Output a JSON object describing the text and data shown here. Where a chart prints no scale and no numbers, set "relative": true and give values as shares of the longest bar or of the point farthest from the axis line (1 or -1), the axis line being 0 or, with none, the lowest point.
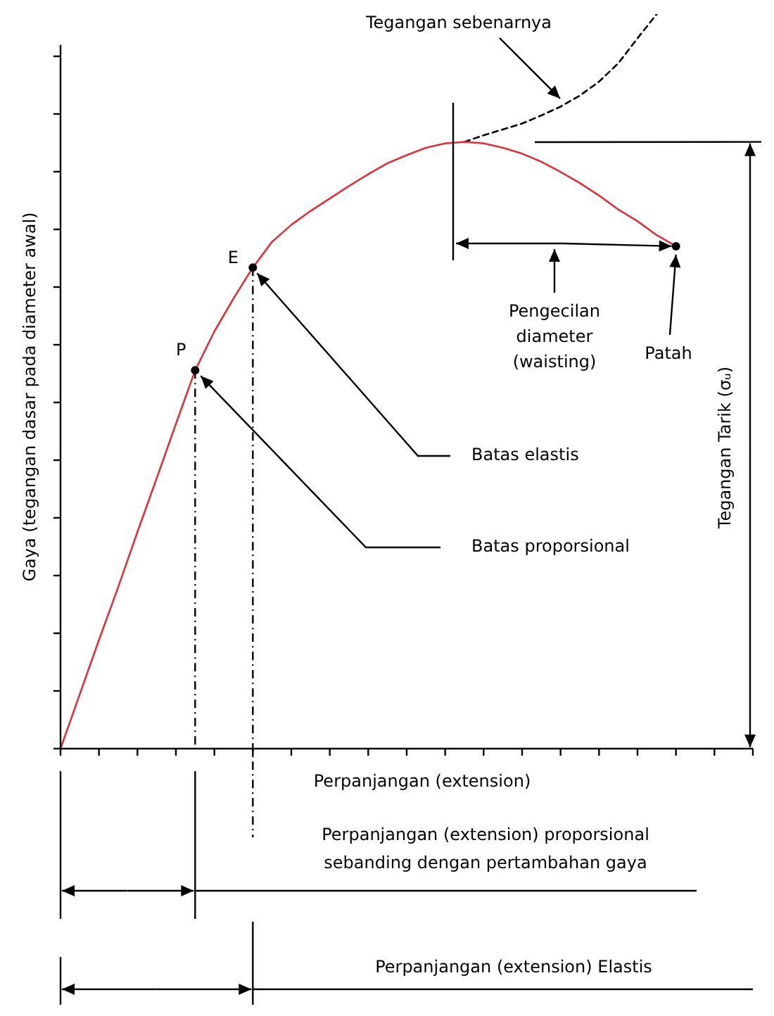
{
  "chart_data": {
    "type": "line",
    "relative": true,
    "xlabel": "Perpanjangan (extension)",
    "ylabel": "Gaya (tegangan dasar pada diameter awal)",
    "y2label": "Tegangan Tarik (σᵤ)",
    "categories": [
      null,
      null,
      null,
      null,
      null,
      null,
      null,
      null,
      null,
      null,
      null,
      null,
      null,
      null,
      null,
      null,
      null,
      null,
      null,
      null,
      null,
      null,
      null,
      null,
      null,
      null,
      null,
      null,
      null,
      null,
      null,
      null,
      null,
      null,
      null,
      null,
      null
    ],
    "series": [
      {
        "color": "#e0303a",
        "line_style": "solid",
        "values": [
          0,
          0.074,
          0.148,
          0.22,
          0.295,
          0.368,
          0.442,
          0.515,
          0.568,
          0.613,
          0.655,
          0.69,
          0.713,
          0.732,
          0.749,
          0.766,
          0.782,
          0.797,
          0.808,
          0.818,
          0.824,
          0.826,
          0.824,
          0.818,
          0.81,
          0.799,
          0.785,
          0.77,
          0.753,
          0.734,
          0.718,
          0.699,
          0.684,
          null,
          null,
          null,
          null
        ]
      },
      {
        "name": "Tegangan sebenarnya",
        "color": "#000000",
        "line_style": "dashed",
        "values": [
          null,
          null,
          null,
          null,
          null,
          null,
          null,
          null,
          null,
          null,
          null,
          null,
          null,
          null,
          null,
          null,
          null,
          null,
          null,
          null,
          null,
          0.826,
          0.835,
          0.843,
          0.851,
          0.862,
          0.874,
          0.889,
          0.908,
          0.933,
          0.967,
          1,
          null,
          null,
          null,
          null,
          null
        ]
      }
    ],
    "annotations": [
      "P",
      "E",
      "Pengecilan diameter (waisting)",
      "Patah",
      "Batas elastis",
      "Batas proporsional",
      "Perpanjangan (extension) proporsional sebanding dengan pertambahan gaya",
      "Perpanjangan (extension) Elastis"
    ]
  }
}
